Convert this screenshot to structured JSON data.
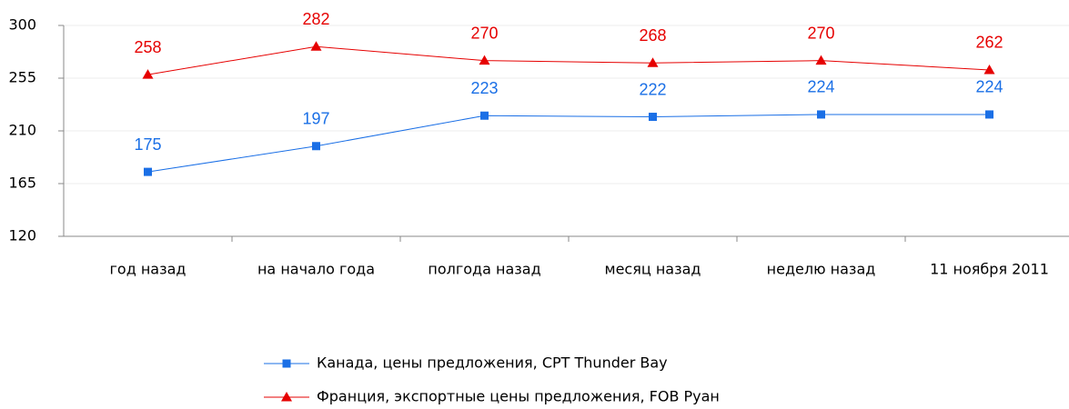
{
  "chart_data": {
    "type": "line",
    "categories": [
      "год назад",
      "на начало года",
      "полгода назад",
      "месяц назад",
      "неделю назад",
      "11 ноября 2011"
    ],
    "series": [
      {
        "name": "Канада, цены предложения, CPT Thunder Bay",
        "color": "#1a6fe6",
        "marker": "square",
        "values": [
          175,
          197,
          223,
          222,
          224,
          224
        ]
      },
      {
        "name": "Франция, экспортные цены предложения, FOB Руан",
        "color": "#e60000",
        "marker": "triangle",
        "values": [
          258,
          282,
          270,
          268,
          270,
          262
        ]
      }
    ],
    "ylim": [
      120,
      300
    ],
    "yticks": [
      120,
      165,
      210,
      255,
      300
    ],
    "grid": true
  }
}
